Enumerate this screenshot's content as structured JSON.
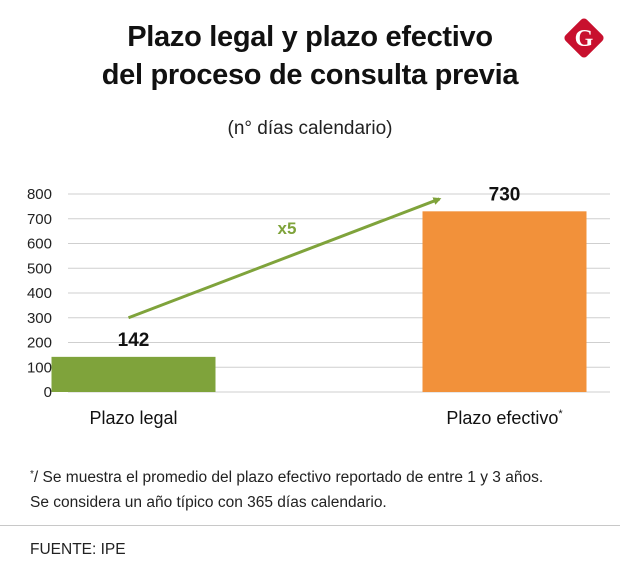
{
  "title_lines": [
    "Plazo legal y plazo efectivo",
    "del proceso de consulta previa"
  ],
  "brand": {
    "letter": "G",
    "color": "#c8102e"
  },
  "subtitle": "(n° días calendario)",
  "chart_data": {
    "type": "bar",
    "title": "Plazo legal y plazo efectivo del proceso de consulta previa",
    "subtitle": "(n° días calendario)",
    "categories": [
      "Plazo legal",
      "Plazo efectivo"
    ],
    "category_suffix": [
      "",
      "*"
    ],
    "values": [
      142,
      730
    ],
    "value_labels": [
      "142",
      "730"
    ],
    "colors": [
      "#7fa33b",
      "#f2913a"
    ],
    "ylim": [
      0,
      800
    ],
    "yticks": [
      0,
      100,
      200,
      300,
      400,
      500,
      600,
      700,
      800
    ],
    "grid": true,
    "xlabel": "",
    "ylabel": "",
    "annotation": {
      "text": "x5",
      "color": "#7fa33b",
      "from_value": 300,
      "to_value": 780
    }
  },
  "footnote_marker": "*",
  "footnote_lines": [
    "/ Se muestra el promedio del plazo efectivo reportado de entre 1 y 3 años.",
    "Se considera un año típico con 365 días calendario."
  ],
  "source": "FUENTE: IPE"
}
